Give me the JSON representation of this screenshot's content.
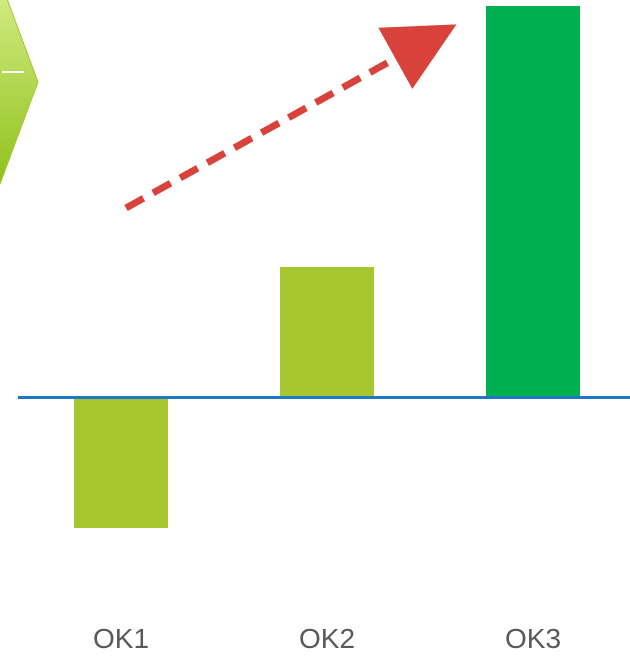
{
  "chart_data": {
    "type": "bar",
    "categories": [
      "OK1",
      "OK2",
      "OK3"
    ],
    "values": [
      -1.0,
      1.0,
      3.0
    ],
    "ylim": [
      -1.0,
      3.0
    ],
    "title": "",
    "xlabel": "",
    "ylabel": "",
    "grid": false,
    "legend": "none",
    "colors": {
      "bars": [
        "#a6c72e",
        "#a6c72e",
        "#00b050"
      ],
      "baseline": "#1f78c1",
      "trend_arrow": "#d9413b",
      "axis_text": "#595959",
      "shape_fill_top": "#d6ee8a",
      "shape_fill_bottom": "#8fc21b"
    },
    "annotations": [
      {
        "kind": "dashed-trend-arrow",
        "direction": "up-right"
      },
      {
        "kind": "partial-chevron-shape",
        "position": "top-left"
      }
    ]
  }
}
